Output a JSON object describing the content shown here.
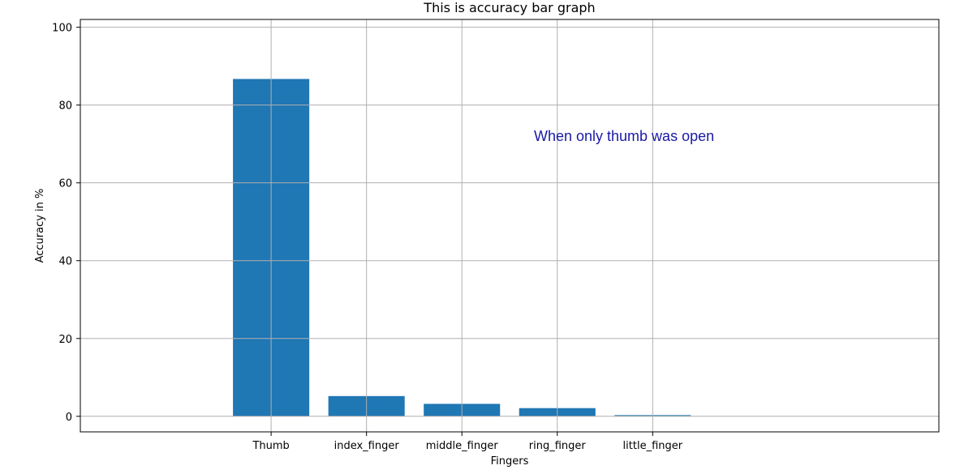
{
  "chart_data": {
    "type": "bar",
    "title": "This is accuracy bar graph",
    "xlabel": "Fingers",
    "ylabel": "Accuracy in %",
    "categories": [
      "Thumb",
      "index_finger",
      "middle_finger",
      "ring_finger",
      "little_finger"
    ],
    "values": [
      86.7,
      5.2,
      3.2,
      2.1,
      0.3
    ],
    "ylim": [
      -4,
      102
    ],
    "xlim": [
      -2,
      7
    ],
    "yticks": [
      0,
      20,
      40,
      60,
      80,
      100
    ],
    "grid": true,
    "bar_color": "#1f77b4",
    "annotation": {
      "text": "When only thumb was open",
      "x": 3.7,
      "y": 72,
      "color": "#1a1aa6"
    }
  }
}
